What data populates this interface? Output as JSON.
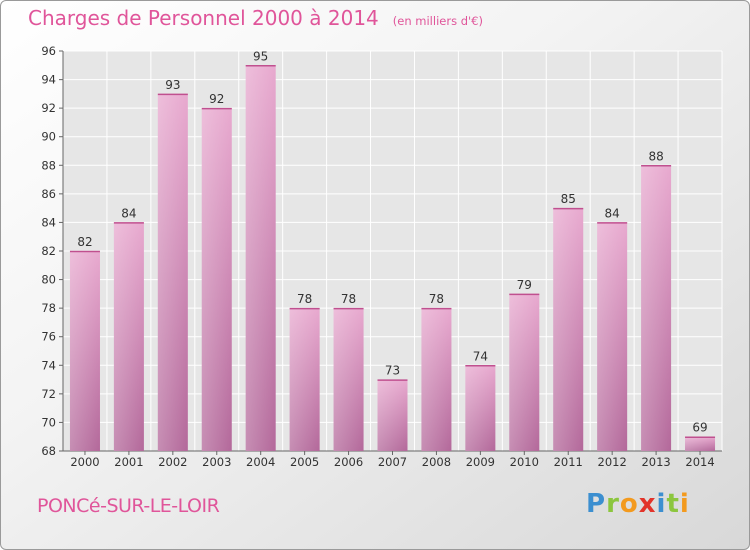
{
  "title": "Charges de Personnel 2000 à 2014",
  "subtitle": "(en milliers d'€)",
  "commune": "PONCé-SUR-LE-LOIR",
  "logo": {
    "letters": [
      "P",
      "r",
      "o",
      "x",
      "i",
      "t",
      "i"
    ],
    "colors": [
      "#3c8fd0",
      "#8cc63e",
      "#f39a1e",
      "#e2332a",
      "#3c8fd0",
      "#8cc63e",
      "#f39a1e"
    ]
  },
  "chart_data": {
    "type": "bar",
    "title": "Charges de Personnel 2000 à 2014",
    "subtitle": "(en milliers d'€)",
    "categories": [
      "2000",
      "2001",
      "2002",
      "2003",
      "2004",
      "2005",
      "2006",
      "2007",
      "2008",
      "2009",
      "2010",
      "2011",
      "2012",
      "2013",
      "2014"
    ],
    "values": [
      82,
      84,
      93,
      92,
      95,
      78,
      78,
      73,
      78,
      74,
      79,
      85,
      84,
      88,
      69
    ],
    "ylim": [
      68,
      96
    ],
    "yticks": [
      68,
      70,
      72,
      74,
      76,
      78,
      80,
      82,
      84,
      86,
      88,
      90,
      92,
      94,
      96
    ],
    "grid": true,
    "bar_color": "#e2a3c8",
    "bar_color_dark": "#b56b98"
  }
}
